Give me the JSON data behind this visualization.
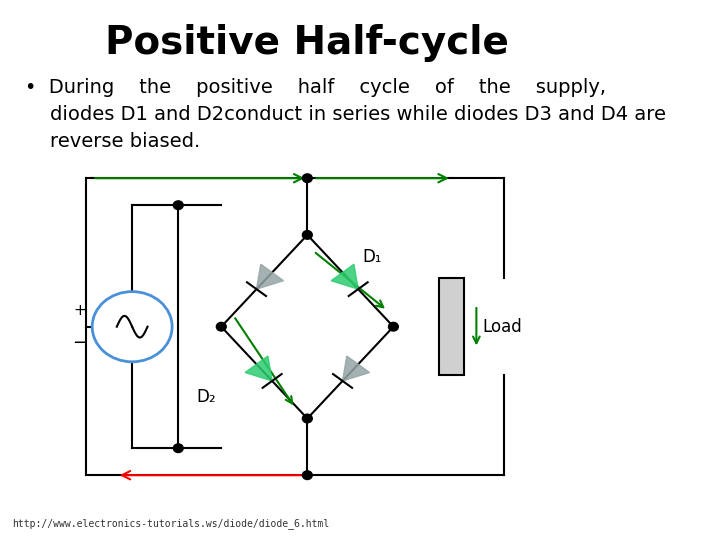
{
  "title": "Positive Half-cycle",
  "title_fontsize": 28,
  "title_fontweight": "bold",
  "bullet_text_line1": "•  During    the    positive    half    cycle    of    the    supply,",
  "bullet_text_line2": "    diodes D1 and D2conduct in series while diodes D3 and D4 are",
  "bullet_text_line3": "    reverse biased.",
  "footnote": "http://www.electronics-tutorials.ws/diode/diode_6.html",
  "bg_color": "#ffffff",
  "text_color": "#000000",
  "text_fontsize": 14
}
